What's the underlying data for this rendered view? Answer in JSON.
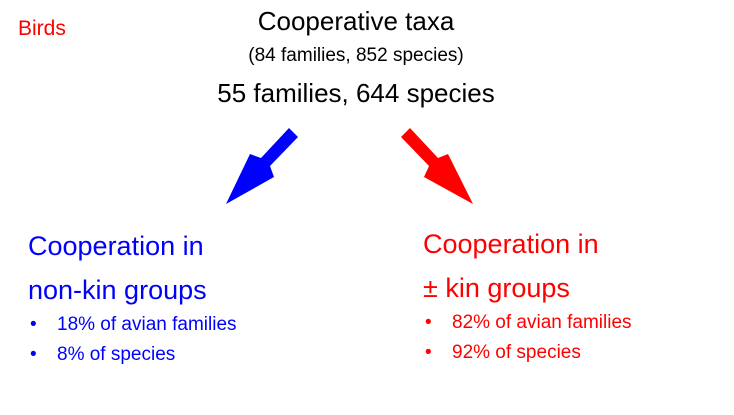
{
  "label": "Birds",
  "title": "Cooperative taxa",
  "subtitle": "(84 families, 852 species)",
  "counts": "55 families, 644 species",
  "colors": {
    "nonkin": "#0000ff",
    "kin": "#ff0000"
  },
  "left": {
    "heading": [
      "Cooperation in",
      "non-kin groups"
    ],
    "bullets": [
      "18% of avian families",
      "8% of species"
    ]
  },
  "right": {
    "heading": [
      "Cooperation in",
      "± kin groups"
    ],
    "bullets": [
      "82% of avian families",
      "92% of species"
    ]
  },
  "bullet_glyph": "•"
}
